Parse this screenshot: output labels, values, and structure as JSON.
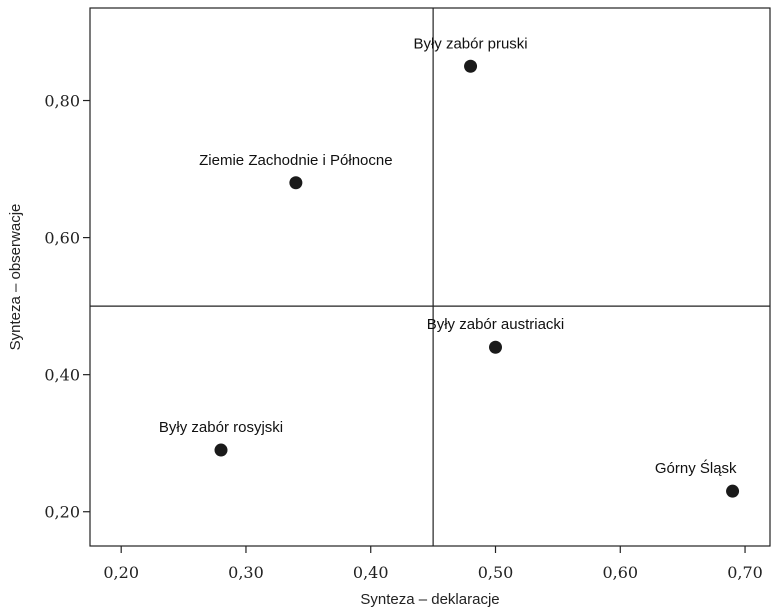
{
  "chart_data": {
    "type": "scatter",
    "title": "",
    "xlabel": "Synteza – deklaracje",
    "ylabel": "Synteza – obserwacje",
    "xlim": [
      0.175,
      0.72
    ],
    "ylim": [
      0.15,
      0.935
    ],
    "xticks": [
      {
        "value": 0.2,
        "label": "0,20"
      },
      {
        "value": 0.3,
        "label": "0,30"
      },
      {
        "value": 0.4,
        "label": "0,40"
      },
      {
        "value": 0.5,
        "label": "0,50"
      },
      {
        "value": 0.6,
        "label": "0,60"
      },
      {
        "value": 0.7,
        "label": "0,70"
      }
    ],
    "yticks": [
      {
        "value": 0.2,
        "label": "0,20"
      },
      {
        "value": 0.4,
        "label": "0,40"
      },
      {
        "value": 0.6,
        "label": "0,60"
      },
      {
        "value": 0.8,
        "label": "0,80"
      }
    ],
    "reference_lines": {
      "x": 0.45,
      "y": 0.5
    },
    "grid": false,
    "marker_color": "#1a1a1a",
    "points": [
      {
        "label": "Były zabór pruski",
        "x": 0.48,
        "y": 0.85,
        "label_position": "above"
      },
      {
        "label": "Ziemie Zachodnie i Północne",
        "x": 0.34,
        "y": 0.68,
        "label_position": "above"
      },
      {
        "label": "Były zabór austriacki",
        "x": 0.5,
        "y": 0.44,
        "label_position": "above"
      },
      {
        "label": "Były zabór rosyjski",
        "x": 0.28,
        "y": 0.29,
        "label_position": "above"
      },
      {
        "label": "Górny Śląsk",
        "x": 0.69,
        "y": 0.23,
        "label_position": "above-left"
      }
    ]
  }
}
